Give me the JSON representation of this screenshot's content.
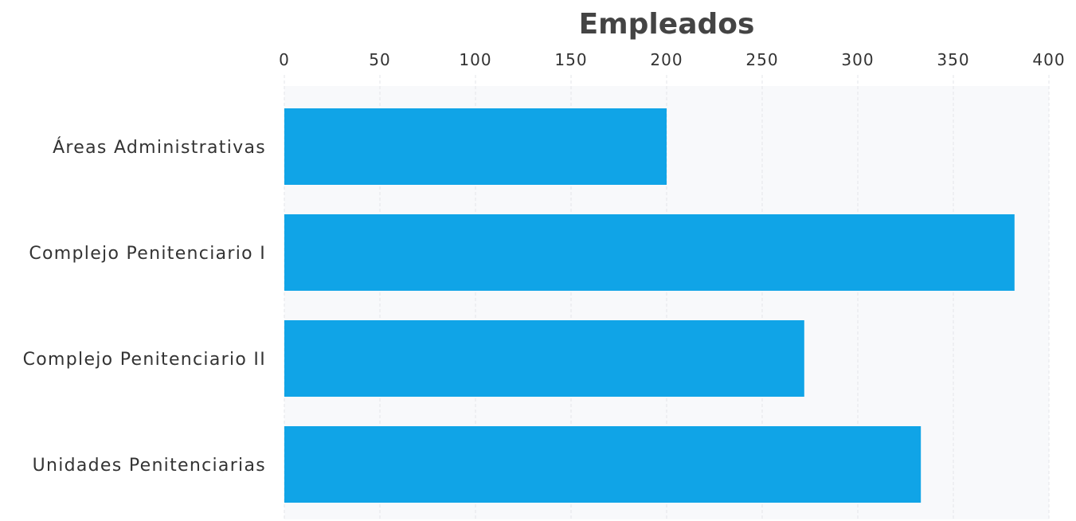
{
  "chart_data": {
    "type": "bar",
    "orientation": "horizontal",
    "title": "Empleados",
    "xlabel": "",
    "ylabel": "",
    "categories": [
      "Áreas Administrativas",
      "Complejo Penitenciario I",
      "Complejo Penitenciario II",
      "Unidades Penitenciarias"
    ],
    "values": [
      200,
      382,
      272,
      333
    ],
    "xlim": [
      0,
      400
    ],
    "x_ticks": [
      "0",
      "50",
      "100",
      "150",
      "200",
      "250",
      "300",
      "350",
      "400"
    ],
    "axis_position": "top",
    "grid": true,
    "legend": "none",
    "colors": {
      "bar": "#10a4e7",
      "plot_background": "#f8f9fb",
      "grid": "#e3e5ea",
      "text": "#333333",
      "title": "#444444"
    }
  }
}
